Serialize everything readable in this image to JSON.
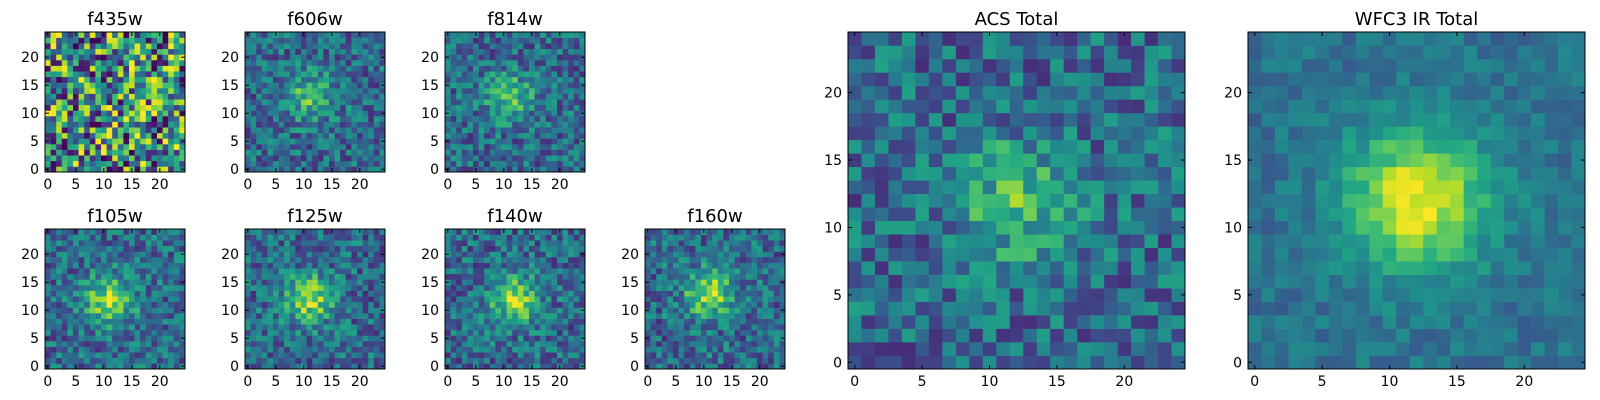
{
  "figure": {
    "description_type": "image-grid"
  },
  "chart_data": [
    {
      "type": "heatmap",
      "title": "f435w",
      "pattern": "noise",
      "peak": [
        12,
        12
      ],
      "xlim": [
        0,
        25
      ],
      "ylim": [
        0,
        25
      ],
      "xticks": [
        0,
        5,
        10,
        15,
        20
      ],
      "yticks": [
        0,
        5,
        10,
        15,
        20
      ],
      "colormap": "viridis",
      "seed": 11
    },
    {
      "type": "heatmap",
      "title": "f606w",
      "pattern": "weak-source",
      "peak": [
        11,
        13
      ],
      "xlim": [
        0,
        25
      ],
      "ylim": [
        0,
        25
      ],
      "xticks": [
        0,
        5,
        10,
        15,
        20
      ],
      "yticks": [
        0,
        5,
        10,
        15,
        20
      ],
      "colormap": "viridis",
      "seed": 23
    },
    {
      "type": "heatmap",
      "title": "f814w",
      "pattern": "weak-source",
      "peak": [
        11,
        13
      ],
      "xlim": [
        0,
        25
      ],
      "ylim": [
        0,
        25
      ],
      "xticks": [
        0,
        5,
        10,
        15,
        20
      ],
      "yticks": [
        0,
        5,
        10,
        15,
        20
      ],
      "colormap": "viridis",
      "seed": 37
    },
    {
      "type": "heatmap",
      "title": "f105w",
      "pattern": "source",
      "peak": [
        11,
        12
      ],
      "xlim": [
        0,
        25
      ],
      "ylim": [
        0,
        25
      ],
      "xticks": [
        0,
        5,
        10,
        15,
        20
      ],
      "yticks": [
        0,
        5,
        10,
        15,
        20
      ],
      "colormap": "viridis",
      "seed": 41
    },
    {
      "type": "heatmap",
      "title": "f125w",
      "pattern": "source",
      "peak": [
        11,
        12
      ],
      "xlim": [
        0,
        25
      ],
      "ylim": [
        0,
        25
      ],
      "xticks": [
        0,
        5,
        10,
        15,
        20
      ],
      "yticks": [
        0,
        5,
        10,
        15,
        20
      ],
      "colormap": "viridis",
      "seed": 53
    },
    {
      "type": "heatmap",
      "title": "f140w",
      "pattern": "source",
      "peak": [
        12,
        12
      ],
      "xlim": [
        0,
        25
      ],
      "ylim": [
        0,
        25
      ],
      "xticks": [
        0,
        5,
        10,
        15,
        20
      ],
      "yticks": [
        0,
        5,
        10,
        15,
        20
      ],
      "colormap": "viridis",
      "seed": 67
    },
    {
      "type": "heatmap",
      "title": "f160w",
      "pattern": "source",
      "peak": [
        11,
        13
      ],
      "xlim": [
        0,
        25
      ],
      "ylim": [
        0,
        25
      ],
      "xticks": [
        0,
        5,
        10,
        15,
        20
      ],
      "yticks": [
        0,
        5,
        10,
        15,
        20
      ],
      "colormap": "viridis",
      "seed": 79
    },
    {
      "type": "heatmap",
      "title": "ACS Total",
      "pattern": "weak-source",
      "peak": [
        12,
        12
      ],
      "xlim": [
        0,
        25
      ],
      "ylim": [
        0,
        25
      ],
      "xticks": [
        0,
        5,
        10,
        15,
        20
      ],
      "yticks": [
        0,
        5,
        10,
        15,
        20
      ],
      "colormap": "viridis",
      "seed": 97
    },
    {
      "type": "heatmap",
      "title": "WFC3 IR Total",
      "pattern": "strong-source",
      "peak": [
        12,
        12
      ],
      "xlim": [
        0,
        25
      ],
      "ylim": [
        0,
        25
      ],
      "xticks": [
        0,
        5,
        10,
        15,
        20
      ],
      "yticks": [
        0,
        5,
        10,
        15,
        20
      ],
      "colormap": "viridis",
      "seed": 113
    }
  ]
}
